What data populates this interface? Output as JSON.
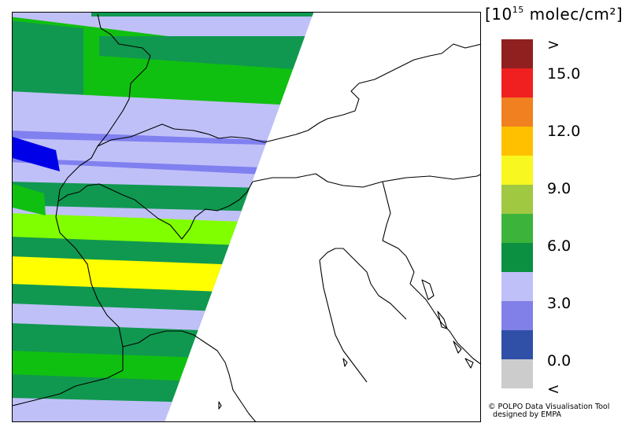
{
  "legend": {
    "unit_prefix": "[10",
    "unit_exp": "15",
    "unit_suffix": " molec/cm²]",
    "colors": [
      "#cccccc",
      "#3050a8",
      "#8080e8",
      "#c0c0f8",
      "#0a9040",
      "#3cb43c",
      "#a0c840",
      "#f8f820",
      "#ffc000",
      "#f08020",
      "#f02020",
      "#902020"
    ],
    "labels": [
      {
        "text": ">",
        "slot": 0
      },
      {
        "text": "15.0",
        "slot": 1
      },
      {
        "text": "12.0",
        "slot": 3
      },
      {
        "text": "9.0",
        "slot": 5
      },
      {
        "text": "6.0",
        "slot": 7
      },
      {
        "text": "3.0",
        "slot": 9
      },
      {
        "text": "0.0",
        "slot": 11
      },
      {
        "text": "<",
        "slot": 12
      }
    ]
  },
  "credit": {
    "line1": "© POLPO Data Visualisation Tool",
    "line2": "designed by EMPA"
  },
  "map": {
    "colors": {
      "dark_green": "#109850",
      "green": "#10c010",
      "lavender": "#c0c0f8",
      "periwinkle": "#8080f0",
      "blue": "#0000e8",
      "lime": "#80ff00",
      "yellow": "#ffff00",
      "yellow_green": "#90f020",
      "border": "#000000"
    }
  }
}
